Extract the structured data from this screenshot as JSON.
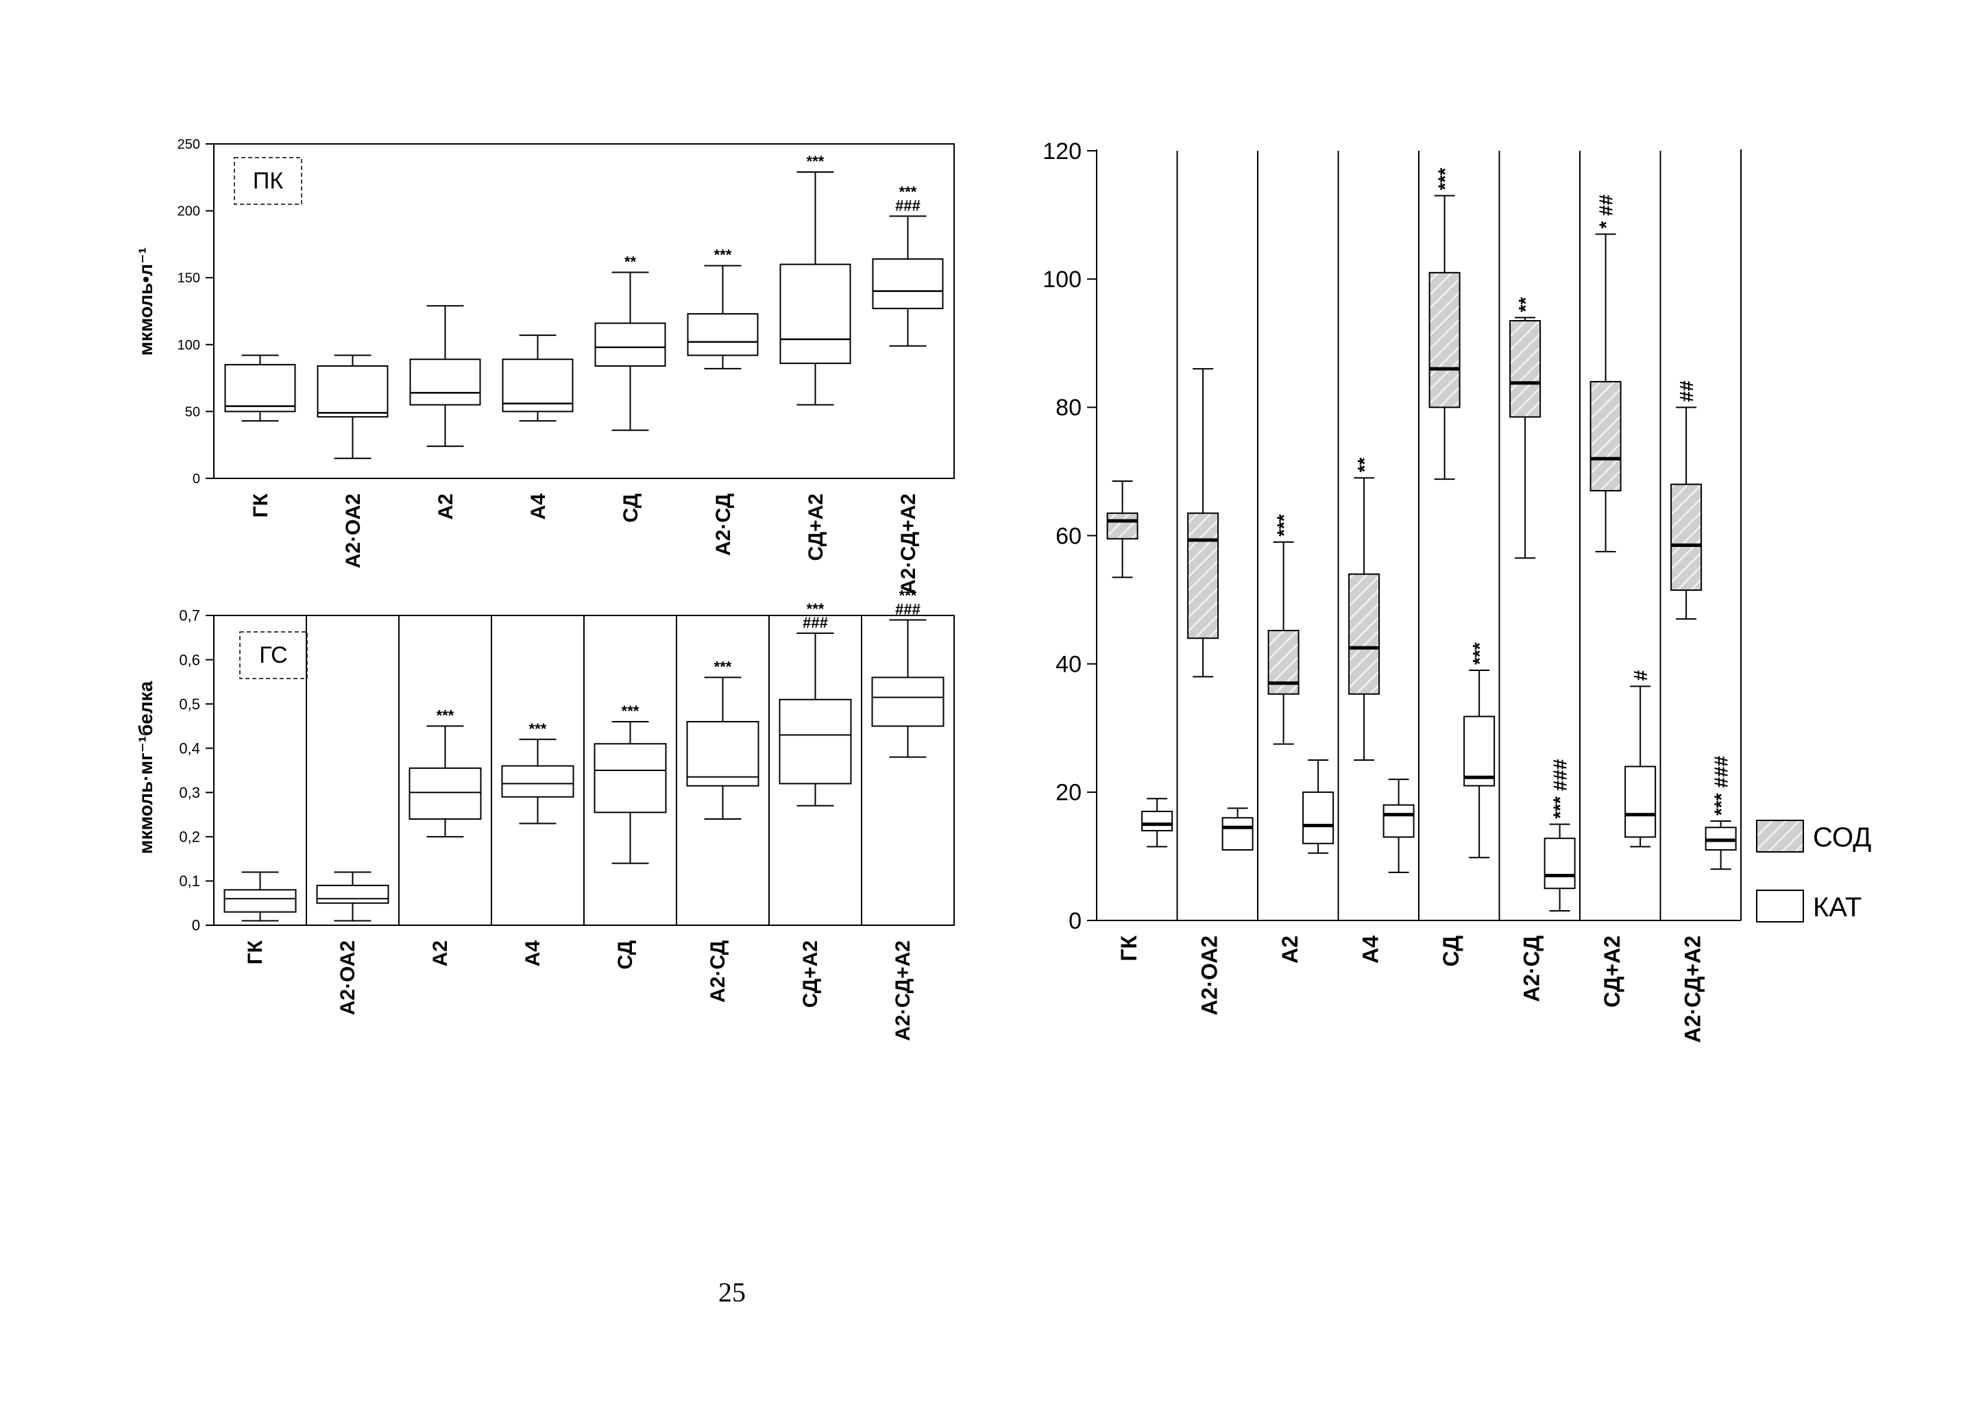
{
  "page": {
    "page_number": "25"
  },
  "chart_data": [
    {
      "type": "box",
      "id": "pk",
      "panel_label": "ПК",
      "ylabel": "мкмоль•л⁻¹",
      "xlabel": "",
      "ylim": [
        0,
        250
      ],
      "yticks": [
        "0",
        "50",
        "100",
        "150",
        "200",
        "250"
      ],
      "ytick_values": [
        0,
        50,
        100,
        150,
        200,
        250
      ],
      "grid": false,
      "categories": [
        "ГК",
        "А2·ОА2",
        "А2",
        "А4",
        "СД",
        "А2·СД",
        "СД+А2",
        "А2·СД+А2"
      ],
      "series": [
        {
          "boxes": [
            {
              "min": 43,
              "q1": 50,
              "median": 54,
              "q3": 85,
              "max": 92,
              "annotation": []
            },
            {
              "min": 15,
              "q1": 46,
              "median": 49,
              "q3": 84,
              "max": 92,
              "annotation": []
            },
            {
              "min": 24,
              "q1": 55,
              "median": 64,
              "q3": 89,
              "max": 129,
              "annotation": []
            },
            {
              "min": 43,
              "q1": 50,
              "median": 56,
              "q3": 89,
              "max": 107,
              "annotation": []
            },
            {
              "min": 36,
              "q1": 84,
              "median": 98,
              "q3": 116,
              "max": 154,
              "annotation": [
                "**"
              ]
            },
            {
              "min": 82,
              "q1": 92,
              "median": 102,
              "q3": 123,
              "max": 159,
              "annotation": [
                "***"
              ]
            },
            {
              "min": 55,
              "q1": 86,
              "median": 104,
              "q3": 160,
              "max": 229,
              "annotation": [
                "***"
              ]
            },
            {
              "min": 99,
              "q1": 127,
              "median": 140,
              "q3": 164,
              "max": 196,
              "annotation": [
                "***",
                "###"
              ]
            }
          ]
        }
      ]
    },
    {
      "type": "box",
      "id": "gs",
      "panel_label": "ГС",
      "ylabel": "мкмоль·мг⁻¹белка",
      "xlabel": "",
      "ylim": [
        0,
        0.7
      ],
      "yticks": [
        "0",
        "0,1",
        "0,2",
        "0,3",
        "0,4",
        "0,5",
        "0,6",
        "0,7"
      ],
      "ytick_values": [
        0,
        0.1,
        0.2,
        0.3,
        0.4,
        0.5,
        0.6,
        0.7
      ],
      "grid": false,
      "categories": [
        "ГК",
        "А2·ОА2",
        "А2",
        "А4",
        "СД",
        "А2·СД",
        "СД+А2",
        "А2·СД+А2"
      ],
      "series": [
        {
          "boxes": [
            {
              "min": 0.01,
              "q1": 0.03,
              "median": 0.06,
              "q3": 0.08,
              "max": 0.12,
              "annotation": []
            },
            {
              "min": 0.01,
              "q1": 0.05,
              "median": 0.06,
              "q3": 0.09,
              "max": 0.12,
              "annotation": []
            },
            {
              "min": 0.2,
              "q1": 0.24,
              "median": 0.3,
              "q3": 0.355,
              "max": 0.45,
              "annotation": [
                "***"
              ]
            },
            {
              "min": 0.23,
              "q1": 0.29,
              "median": 0.32,
              "q3": 0.36,
              "max": 0.42,
              "annotation": [
                "***"
              ]
            },
            {
              "min": 0.14,
              "q1": 0.255,
              "median": 0.35,
              "q3": 0.41,
              "max": 0.46,
              "annotation": [
                "***"
              ]
            },
            {
              "min": 0.24,
              "q1": 0.315,
              "median": 0.335,
              "q3": 0.46,
              "max": 0.56,
              "annotation": [
                "***"
              ]
            },
            {
              "min": 0.27,
              "q1": 0.32,
              "median": 0.43,
              "q3": 0.51,
              "max": 0.66,
              "annotation": [
                "***",
                "###"
              ]
            },
            {
              "min": 0.38,
              "q1": 0.45,
              "median": 0.515,
              "q3": 0.56,
              "max": 0.69,
              "annotation": [
                "***",
                "###"
              ]
            }
          ]
        }
      ]
    },
    {
      "type": "box",
      "id": "sod-kat",
      "panel_label": "",
      "ylabel": "",
      "xlabel": "",
      "ylim": [
        0,
        120
      ],
      "yticks": [
        "0",
        "20",
        "40",
        "60",
        "80",
        "100",
        "120"
      ],
      "ytick_values": [
        0,
        20,
        40,
        60,
        80,
        100,
        120
      ],
      "grid": false,
      "legend_position": "right",
      "categories": [
        "ГК",
        "А2·ОА2",
        "А2",
        "А4",
        "СД",
        "А2·СД",
        "СД+А2",
        "А2·СД+А2"
      ],
      "series": [
        {
          "name": "СОД",
          "fill": "hatched-gray",
          "boxes": [
            {
              "min": 53.5,
              "q1": 59.5,
              "median": 62.3,
              "q3": 63.5,
              "max": 68.5,
              "annotation": []
            },
            {
              "min": 38,
              "q1": 44,
              "median": 59.3,
              "q3": 63.5,
              "max": 86,
              "annotation": []
            },
            {
              "min": 27.5,
              "q1": 35.3,
              "median": 37,
              "q3": 45.2,
              "max": 59,
              "annotation": [
                "***"
              ]
            },
            {
              "min": 25,
              "q1": 35.3,
              "median": 42.5,
              "q3": 54,
              "max": 69,
              "annotation": [
                "**"
              ]
            },
            {
              "min": 68.8,
              "q1": 80,
              "median": 86,
              "q3": 101,
              "max": 113,
              "annotation": [
                "***"
              ]
            },
            {
              "min": 56.5,
              "q1": 78.5,
              "median": 83.8,
              "q3": 93.5,
              "max": 94,
              "annotation": [
                "**"
              ]
            },
            {
              "min": 57.5,
              "q1": 67,
              "median": 72,
              "q3": 84,
              "max": 107,
              "annotation": [
                "*",
                "##"
              ]
            },
            {
              "min": 47,
              "q1": 51.5,
              "median": 58.5,
              "q3": 68,
              "max": 80,
              "annotation": [
                "##"
              ]
            }
          ]
        },
        {
          "name": "КАТ",
          "fill": "white",
          "boxes": [
            {
              "min": 11.5,
              "q1": 14,
              "median": 15,
              "q3": 17,
              "max": 19,
              "annotation": []
            },
            {
              "min": 11,
              "q1": 11,
              "median": 14.5,
              "q3": 16,
              "max": 17.5,
              "annotation": []
            },
            {
              "min": 10.5,
              "q1": 12,
              "median": 14.8,
              "q3": 20,
              "max": 25,
              "annotation": []
            },
            {
              "min": 7.5,
              "q1": 13,
              "median": 16.5,
              "q3": 18,
              "max": 22,
              "annotation": []
            },
            {
              "min": 9.8,
              "q1": 21,
              "median": 22.3,
              "q3": 31.8,
              "max": 39,
              "annotation": [
                "***"
              ]
            },
            {
              "min": 1.5,
              "q1": 5,
              "median": 7,
              "q3": 12.8,
              "max": 15,
              "annotation": [
                "***",
                "###"
              ]
            },
            {
              "min": 11.5,
              "q1": 13,
              "median": 16.5,
              "q3": 24,
              "max": 36.5,
              "annotation": [
                "#"
              ]
            },
            {
              "min": 8,
              "q1": 11,
              "median": 12.5,
              "q3": 14.5,
              "max": 15.5,
              "annotation": [
                "***",
                "###"
              ]
            }
          ]
        }
      ]
    }
  ]
}
